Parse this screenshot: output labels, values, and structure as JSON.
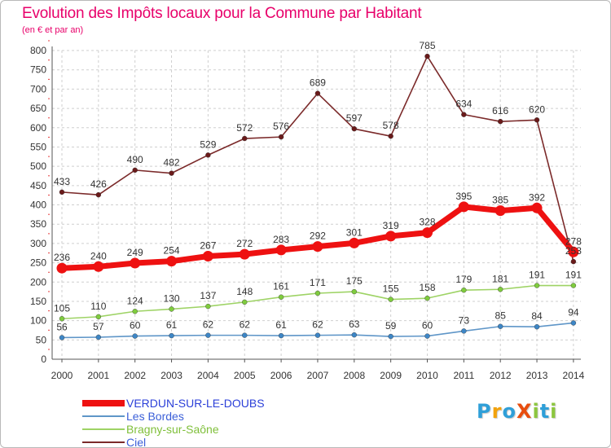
{
  "title": "Evolution des Impôts locaux pour la Commune par Habitant",
  "subtitle": "(en € et par an)",
  "logo": {
    "text": "ProXiti",
    "letters": [
      {
        "ch": "P",
        "color": "#2f9fd8"
      },
      {
        "ch": "r",
        "color": "#f2a20c"
      },
      {
        "ch": "o",
        "color": "#2f9fd8"
      },
      {
        "ch": "X",
        "color": "#e84d0e"
      },
      {
        "ch": "i",
        "color": "#8cc63e"
      },
      {
        "ch": "t",
        "color": "#2f9fd8"
      },
      {
        "ch": "i",
        "color": "#8cc63e"
      }
    ]
  },
  "chart_data": {
    "type": "line",
    "x": [
      "2000",
      "2001",
      "2002",
      "2003",
      "2004",
      "2005",
      "2006",
      "2007",
      "2008",
      "2009",
      "2010",
      "2011",
      "2012",
      "2013",
      "2014"
    ],
    "ylim": [
      0,
      800
    ],
    "yticks": [
      0,
      50,
      100,
      150,
      200,
      250,
      300,
      350,
      400,
      450,
      500,
      550,
      600,
      650,
      700,
      750,
      800
    ],
    "grid": true,
    "legend_position": "bottom-left",
    "series": [
      {
        "name": "VERDUN-SUR-LE-DOUBS",
        "color": "#ee1111",
        "marker": "#ee1111",
        "emphasis": true,
        "values": [
          236,
          240,
          249,
          254,
          267,
          272,
          283,
          292,
          301,
          319,
          328,
          395,
          385,
          392,
          278
        ]
      },
      {
        "name": "Les Bordes",
        "color": "#5f96c8",
        "marker": "#3d86c6",
        "values": [
          56,
          57,
          60,
          61,
          62,
          62,
          61,
          62,
          63,
          59,
          60,
          73,
          85,
          84,
          94
        ]
      },
      {
        "name": "Bragny-sur-Saône",
        "color": "#9ed365",
        "marker": "#7fcc3e",
        "values": [
          105,
          110,
          124,
          130,
          137,
          148,
          161,
          171,
          175,
          155,
          158,
          179,
          181,
          191,
          191
        ]
      },
      {
        "name": "Ciel",
        "color": "#7b2a2a",
        "marker": "#6a1a1a",
        "values": [
          433,
          426,
          490,
          482,
          529,
          572,
          576,
          689,
          597,
          578,
          785,
          634,
          616,
          620,
          253
        ]
      }
    ]
  }
}
